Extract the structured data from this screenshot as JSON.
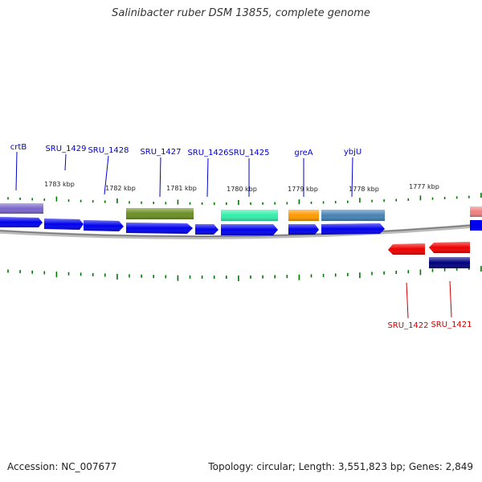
{
  "title": "Salinibacter ruber DSM 13855, complete genome",
  "accession": "Accession: NC_007677",
  "summary": "Topology: circular; Length: 3,551,823 bp; Genes: 2,849",
  "colors": {
    "cds_forward": "#0000ee",
    "cds_reverse": "#ee0000",
    "backbone": "#888888",
    "tick": "#007700",
    "label_forward": "#0000cc",
    "label_reverse": "#cc0000"
  },
  "ruler": {
    "unit": "kbp",
    "labels": [
      "1783 kbp",
      "1782 kbp",
      "1781 kbp",
      "1780 kbp",
      "1779 kbp",
      "1778 kbp",
      "1777 kbp"
    ]
  },
  "forward_genes": [
    {
      "name": "crtB",
      "feature_color": "#7a66cc"
    },
    {
      "name": "SRU_1429",
      "feature_color": null
    },
    {
      "name": "SRU_1428",
      "feature_color": null
    },
    {
      "name": "SRU_1427",
      "feature_color": "#6b8e23"
    },
    {
      "name": "SRU_1426",
      "feature_color": null
    },
    {
      "name": "SRU_1425",
      "feature_color": "#33eeaa"
    },
    {
      "name": "greA",
      "feature_color": "#ff9900"
    },
    {
      "name": "ybjU",
      "feature_color": "#4682b4"
    }
  ],
  "reverse_genes": [
    {
      "name": "SRU_1422",
      "feature_color": null
    },
    {
      "name": "SRU_1421",
      "feature_color": "#000080"
    }
  ]
}
